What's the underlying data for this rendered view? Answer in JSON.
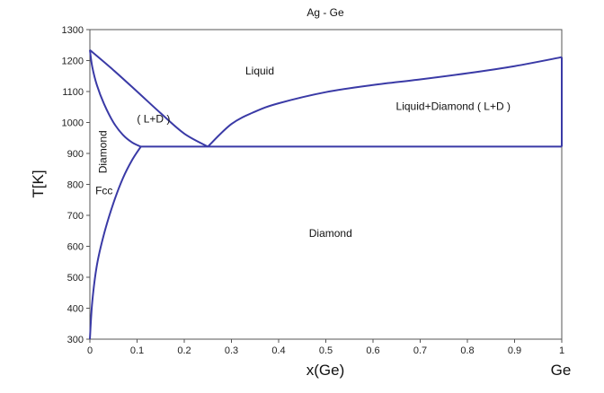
{
  "chart_data": {
    "type": "line",
    "title": "Ag - Ge",
    "xlabel": "x(Ge)",
    "ylabel": "T[K]",
    "x_end_label": "Ge",
    "xlim": [
      0,
      1
    ],
    "ylim": [
      300,
      1300
    ],
    "x_ticks": [
      "0",
      "0.1",
      "0.2",
      "0.3",
      "0.4",
      "0.5",
      "0.6",
      "0.7",
      "0.8",
      "0.9",
      "1"
    ],
    "y_ticks": [
      "300",
      "400",
      "500",
      "600",
      "700",
      "800",
      "900",
      "1000",
      "1100",
      "1200",
      "1300"
    ],
    "grid": false,
    "line_color": "#3a3aa6",
    "series": [
      {
        "id": "liquidus-ag",
        "points": [
          [
            0,
            1234
          ],
          [
            0.05,
            1169
          ],
          [
            0.1,
            1100
          ],
          [
            0.15,
            1030
          ],
          [
            0.2,
            964
          ],
          [
            0.25,
            922
          ]
        ]
      },
      {
        "id": "liquidus-ge",
        "points": [
          [
            0.25,
            922
          ],
          [
            0.3,
            995
          ],
          [
            0.35,
            1035
          ],
          [
            0.4,
            1062
          ],
          [
            0.5,
            1098
          ],
          [
            0.6,
            1121
          ],
          [
            0.7,
            1139
          ],
          [
            0.8,
            1159
          ],
          [
            0.9,
            1182
          ],
          [
            1.0,
            1211
          ]
        ]
      },
      {
        "id": "solidus-ag",
        "points": [
          [
            0,
            1234
          ],
          [
            0.005,
            1180
          ],
          [
            0.015,
            1120
          ],
          [
            0.03,
            1060
          ],
          [
            0.05,
            1000
          ],
          [
            0.07,
            960
          ],
          [
            0.09,
            935
          ],
          [
            0.108,
            922
          ]
        ]
      },
      {
        "id": "solvus-ag",
        "points": [
          [
            0.108,
            922
          ],
          [
            0.09,
            880
          ],
          [
            0.07,
            820
          ],
          [
            0.05,
            740
          ],
          [
            0.03,
            640
          ],
          [
            0.015,
            540
          ],
          [
            0.005,
            420
          ],
          [
            0,
            300
          ]
        ]
      },
      {
        "id": "eutectic",
        "points": [
          [
            0.108,
            922
          ],
          [
            1.0,
            922
          ]
        ]
      },
      {
        "id": "ge-melting-edge",
        "points": [
          [
            1.0,
            922
          ],
          [
            1.0,
            1211
          ]
        ]
      }
    ],
    "annotations": [
      {
        "id": "liquid",
        "text": "Liquid",
        "x": 0.36,
        "y": 1155
      },
      {
        "id": "l-plus-d-left",
        "text": "( L+D )",
        "x": 0.135,
        "y": 1000
      },
      {
        "id": "l-plus-d-right",
        "text": "Liquid+Diamond ( L+D )",
        "x": 0.77,
        "y": 1040
      },
      {
        "id": "diamond-vertical",
        "text": "Diamond",
        "x": 0.035,
        "y": 905,
        "rotate": -90
      },
      {
        "id": "fcc",
        "text": "Fcc",
        "x": 0.03,
        "y": 768
      },
      {
        "id": "diamond-main",
        "text": "Diamond",
        "x": 0.51,
        "y": 630
      }
    ]
  }
}
